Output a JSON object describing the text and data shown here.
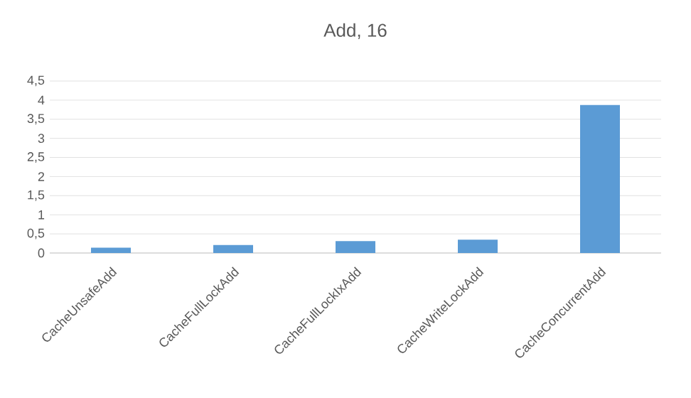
{
  "chart_data": {
    "type": "bar",
    "title": "Add, 16",
    "categories": [
      "CacheUnsafeAdd",
      "CacheFullLockAdd",
      "CacheFullLockIxAdd",
      "CacheWriteLockAdd",
      "CacheConcurrentAdd"
    ],
    "values": [
      0.14,
      0.21,
      0.31,
      0.35,
      3.87
    ],
    "color": "#5b9bd5",
    "ylim": [
      0,
      4.5
    ],
    "yticks": [
      0,
      {
        "value": 0.5,
        "label": "0,5"
      },
      1,
      {
        "value": 1.5,
        "label": "1,5"
      },
      2,
      {
        "value": 2.5,
        "label": "2,5"
      },
      3,
      {
        "value": 3.5,
        "label": "3,5"
      },
      4,
      {
        "value": 4.5,
        "label": "4,5"
      }
    ],
    "grid": "y"
  }
}
